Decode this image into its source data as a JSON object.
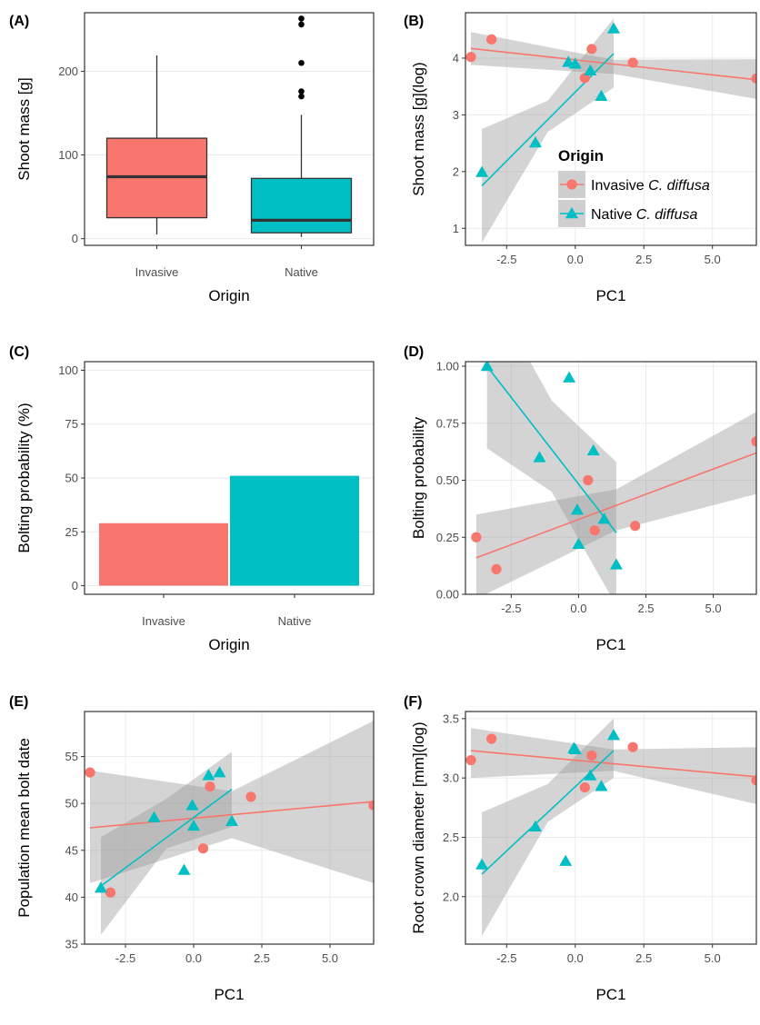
{
  "colors": {
    "invasive": "#F8766D",
    "native": "#00BFC4",
    "band": "#999999",
    "grid": "#ebebeb",
    "ink": "#333333"
  },
  "legend": {
    "title": "Origin",
    "items": [
      {
        "prefix": "Invasive ",
        "species": "C. diffusa"
      },
      {
        "prefix": "Native ",
        "species": "C. diffusa"
      }
    ]
  },
  "chart_data": [
    {
      "panel": "(A)",
      "type": "box",
      "xlabel": "Origin",
      "ylabel": "Shoot mass [g]",
      "categories": [
        "Invasive",
        "Native"
      ],
      "ylim": [
        -8,
        270
      ],
      "yticks": [
        0,
        100,
        200
      ],
      "boxes": [
        {
          "category": "Invasive",
          "lower_whisker": 5,
          "q1": 25,
          "median": 74,
          "q3": 120,
          "upper_whisker": 219,
          "outliers": []
        },
        {
          "category": "Native",
          "lower_whisker": 2,
          "q1": 7,
          "median": 22,
          "q3": 72,
          "upper_whisker": 148,
          "outliers": [
            170,
            176,
            210,
            256,
            263
          ]
        }
      ]
    },
    {
      "panel": "(B)",
      "type": "scatter",
      "xlabel": "PC1",
      "ylabel": "Shoot mass [g](log)",
      "xlim": [
        -4,
        6.6
      ],
      "ylim": [
        0.7,
        4.8
      ],
      "xticks": [
        -2.5,
        0.0,
        2.5,
        5.0
      ],
      "xtick_labels": [
        "-2.5",
        "0.0",
        "2.5",
        "5.0"
      ],
      "yticks": [
        1,
        2,
        3,
        4
      ],
      "ytick_labels": [
        "1",
        "2",
        "3",
        "4"
      ],
      "series": [
        {
          "name": "Invasive C. diffusa",
          "points": [
            [
              -3.8,
              4.02
            ],
            [
              -3.05,
              4.33
            ],
            [
              0.35,
              3.65
            ],
            [
              0.6,
              4.16
            ],
            [
              2.1,
              3.92
            ],
            [
              6.6,
              3.64
            ]
          ],
          "fit": [
            [
              -3.8,
              4.17
            ],
            [
              6.6,
              3.62
            ]
          ],
          "band": {
            "x": [
              -3.8,
              1.4,
              6.6
            ],
            "lo": [
              3.88,
              3.72,
              3.28
            ],
            "hi": [
              4.46,
              3.97,
              3.98
            ]
          }
        },
        {
          "name": "Native C. diffusa",
          "points": [
            [
              -3.4,
              1.99
            ],
            [
              -1.45,
              2.51
            ],
            [
              -0.25,
              3.93
            ],
            [
              0.0,
              3.9
            ],
            [
              0.55,
              3.78
            ],
            [
              0.95,
              3.33
            ],
            [
              1.4,
              4.52
            ]
          ],
          "fit": [
            [
              -3.4,
              1.75
            ],
            [
              1.4,
              4.08
            ]
          ],
          "band": {
            "x": [
              -3.4,
              -1.0,
              1.4
            ],
            "lo": [
              0.75,
              2.7,
              3.48
            ],
            "hi": [
              2.75,
              3.25,
              4.7
            ]
          }
        }
      ]
    },
    {
      "panel": "(C)",
      "type": "bar",
      "xlabel": "Origin",
      "ylabel": "Bolting probability (%)",
      "categories": [
        "Invasive",
        "Native"
      ],
      "values": [
        29,
        51
      ],
      "ylim": [
        -4,
        104
      ],
      "yticks": [
        0,
        25,
        50,
        75,
        100
      ]
    },
    {
      "panel": "(D)",
      "type": "scatter",
      "xlabel": "PC1",
      "ylabel": "Bolting probability",
      "xlim": [
        -4.2,
        6.6
      ],
      "ylim": [
        0.0,
        1.02
      ],
      "xticks": [
        -2.5,
        0.0,
        2.5,
        5.0
      ],
      "xtick_labels": [
        "-2.5",
        "0.0",
        "2.5",
        "5.0"
      ],
      "yticks": [
        0.0,
        0.25,
        0.5,
        0.75,
        1.0
      ],
      "ytick_labels": [
        "0.00",
        "0.25",
        "0.50",
        "0.75",
        "1.00"
      ],
      "series": [
        {
          "name": "Invasive C. diffusa",
          "points": [
            [
              -3.8,
              0.25
            ],
            [
              -3.05,
              0.11
            ],
            [
              0.35,
              0.5
            ],
            [
              0.6,
              0.28
            ],
            [
              2.1,
              0.3
            ],
            [
              6.6,
              0.67
            ]
          ],
          "fit": [
            [
              -3.8,
              0.16
            ],
            [
              6.6,
              0.62
            ]
          ],
          "band": {
            "x": [
              -3.8,
              1.4,
              6.6
            ],
            "lo": [
              -0.02,
              0.28,
              0.44
            ],
            "hi": [
              0.35,
              0.46,
              0.8
            ]
          }
        },
        {
          "name": "Native C. diffusa",
          "points": [
            [
              -3.4,
              1.0
            ],
            [
              -1.45,
              0.6
            ],
            [
              -0.35,
              0.95
            ],
            [
              -0.05,
              0.37
            ],
            [
              0.0,
              0.22
            ],
            [
              0.55,
              0.63
            ],
            [
              0.95,
              0.33
            ],
            [
              1.4,
              0.13
            ]
          ],
          "fit": [
            [
              -3.4,
              1.0
            ],
            [
              1.4,
              0.27
            ]
          ],
          "band": {
            "x": [
              -3.4,
              -1.0,
              1.4
            ],
            "lo": [
              0.64,
              0.45,
              -0.05
            ],
            "hi": [
              1.36,
              0.85,
              0.58
            ]
          }
        }
      ]
    },
    {
      "panel": "(E)",
      "type": "scatter",
      "xlabel": "PC1",
      "ylabel": "Population mean bolt date",
      "xlim": [
        -4,
        6.6
      ],
      "ylim": [
        35,
        59.8
      ],
      "xticks": [
        -2.5,
        0.0,
        2.5,
        5.0
      ],
      "xtick_labels": [
        "-2.5",
        "0.0",
        "2.5",
        "5.0"
      ],
      "yticks": [
        35,
        40,
        45,
        50,
        55
      ],
      "ytick_labels": [
        "35",
        "40",
        "45",
        "50",
        "55"
      ],
      "series": [
        {
          "name": "Invasive C. diffusa",
          "points": [
            [
              -3.8,
              53.3
            ],
            [
              -3.05,
              40.5
            ],
            [
              0.35,
              45.2
            ],
            [
              0.6,
              51.8
            ],
            [
              2.1,
              50.7
            ],
            [
              6.6,
              49.8
            ]
          ],
          "fit": [
            [
              -3.8,
              47.4
            ],
            [
              6.6,
              50.2
            ]
          ],
          "band": {
            "x": [
              -3.8,
              1.4,
              6.6
            ],
            "lo": [
              41.5,
              46.3,
              41.5
            ],
            "hi": [
              53.5,
              51.3,
              58.8
            ]
          }
        },
        {
          "name": "Native C. diffusa",
          "points": [
            [
              -3.4,
              41.0
            ],
            [
              -1.45,
              48.5
            ],
            [
              -0.35,
              42.9
            ],
            [
              -0.05,
              49.8
            ],
            [
              0.0,
              47.6
            ],
            [
              0.55,
              53.0
            ],
            [
              0.95,
              53.3
            ],
            [
              1.4,
              48.1
            ]
          ],
          "fit": [
            [
              -3.4,
              41.2
            ],
            [
              1.4,
              51.5
            ]
          ],
          "band": {
            "x": [
              -3.4,
              -1.0,
              1.4
            ],
            "lo": [
              36.0,
              45.2,
              47.5
            ],
            "hi": [
              46.4,
              50.5,
              55.5
            ]
          }
        }
      ]
    },
    {
      "panel": "(F)",
      "type": "scatter",
      "xlabel": "PC1",
      "ylabel": "Root crown diameter [mm](log)",
      "xlim": [
        -4,
        6.6
      ],
      "ylim": [
        1.6,
        3.56
      ],
      "xticks": [
        -2.5,
        0.0,
        2.5,
        5.0
      ],
      "xtick_labels": [
        "-2.5",
        "0.0",
        "2.5",
        "5.0"
      ],
      "yticks": [
        2.0,
        2.5,
        3.0,
        3.5
      ],
      "ytick_labels": [
        "2.0",
        "2.5",
        "3.0",
        "3.5"
      ],
      "series": [
        {
          "name": "Invasive C. diffusa",
          "points": [
            [
              -3.8,
              3.15
            ],
            [
              -3.05,
              3.33
            ],
            [
              0.35,
              2.92
            ],
            [
              0.6,
              3.19
            ],
            [
              2.1,
              3.26
            ],
            [
              6.6,
              2.98
            ]
          ],
          "fit": [
            [
              -3.8,
              3.23
            ],
            [
              6.6,
              3.01
            ]
          ],
          "band": {
            "x": [
              -3.8,
              1.4,
              6.6
            ],
            "lo": [
              3.0,
              3.06,
              2.78
            ],
            "hi": [
              3.42,
              3.24,
              3.26
            ]
          }
        },
        {
          "name": "Native C. diffusa",
          "points": [
            [
              -3.4,
              2.27
            ],
            [
              -1.45,
              2.59
            ],
            [
              -0.35,
              2.3
            ],
            [
              -0.05,
              3.25
            ],
            [
              0.0,
              3.24
            ],
            [
              0.55,
              3.02
            ],
            [
              0.95,
              2.93
            ],
            [
              1.4,
              3.36
            ]
          ],
          "fit": [
            [
              -3.4,
              2.19
            ],
            [
              1.4,
              3.23
            ]
          ],
          "band": {
            "x": [
              -3.4,
              -1.0,
              1.4
            ],
            "lo": [
              1.67,
              2.63,
              3.0
            ],
            "hi": [
              2.71,
              2.95,
              3.5
            ]
          }
        }
      ]
    }
  ]
}
